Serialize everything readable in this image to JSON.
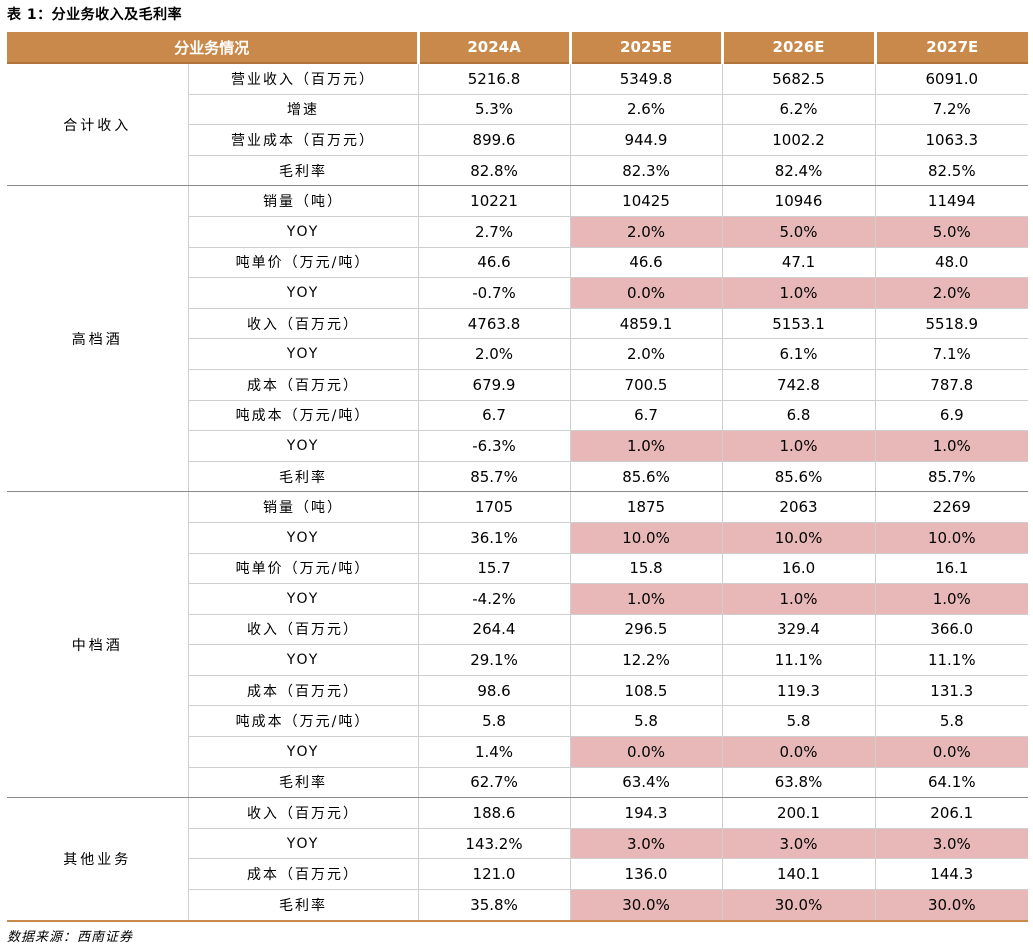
{
  "caption": "表 1：分业务收入及毛利率",
  "header": [
    "分业务情况",
    "2024A",
    "2025E",
    "2026E",
    "2027E"
  ],
  "groups": [
    {
      "name": "合计收入",
      "rows": [
        {
          "label": "营业收入（百万元）",
          "values": [
            "5216.8",
            "5349.8",
            "5682.5",
            "6091.0"
          ],
          "highlight": false
        },
        {
          "label": "增速",
          "values": [
            "5.3%",
            "2.6%",
            "6.2%",
            "7.2%"
          ],
          "highlight": false
        },
        {
          "label": "营业成本（百万元）",
          "values": [
            "899.6",
            "944.9",
            "1002.2",
            "1063.3"
          ],
          "highlight": false
        },
        {
          "label": "毛利率",
          "values": [
            "82.8%",
            "82.3%",
            "82.4%",
            "82.5%"
          ],
          "highlight": false
        }
      ]
    },
    {
      "name": "高档酒",
      "rows": [
        {
          "label": "销量（吨）",
          "values": [
            "10221",
            "10425",
            "10946",
            "11494"
          ],
          "highlight": false
        },
        {
          "label": "YOY",
          "values": [
            "2.7%",
            "2.0%",
            "5.0%",
            "5.0%"
          ],
          "highlight": true
        },
        {
          "label": "吨单价（万元/吨）",
          "values": [
            "46.6",
            "46.6",
            "47.1",
            "48.0"
          ],
          "highlight": false
        },
        {
          "label": "YOY",
          "values": [
            "-0.7%",
            "0.0%",
            "1.0%",
            "2.0%"
          ],
          "highlight": true
        },
        {
          "label": "收入（百万元）",
          "values": [
            "4763.8",
            "4859.1",
            "5153.1",
            "5518.9"
          ],
          "highlight": false
        },
        {
          "label": "YOY",
          "values": [
            "2.0%",
            "2.0%",
            "6.1%",
            "7.1%"
          ],
          "highlight": false
        },
        {
          "label": "成本（百万元）",
          "values": [
            "679.9",
            "700.5",
            "742.8",
            "787.8"
          ],
          "highlight": false
        },
        {
          "label": "吨成本（万元/吨）",
          "values": [
            "6.7",
            "6.7",
            "6.8",
            "6.9"
          ],
          "highlight": false
        },
        {
          "label": "YOY",
          "values": [
            "-6.3%",
            "1.0%",
            "1.0%",
            "1.0%"
          ],
          "highlight": true
        },
        {
          "label": "毛利率",
          "values": [
            "85.7%",
            "85.6%",
            "85.6%",
            "85.7%"
          ],
          "highlight": false
        }
      ]
    },
    {
      "name": "中档酒",
      "rows": [
        {
          "label": "销量（吨）",
          "values": [
            "1705",
            "1875",
            "2063",
            "2269"
          ],
          "highlight": false
        },
        {
          "label": "YOY",
          "values": [
            "36.1%",
            "10.0%",
            "10.0%",
            "10.0%"
          ],
          "highlight": true
        },
        {
          "label": "吨单价（万元/吨）",
          "values": [
            "15.7",
            "15.8",
            "16.0",
            "16.1"
          ],
          "highlight": false
        },
        {
          "label": "YOY",
          "values": [
            "-4.2%",
            "1.0%",
            "1.0%",
            "1.0%"
          ],
          "highlight": true
        },
        {
          "label": "收入（百万元）",
          "values": [
            "264.4",
            "296.5",
            "329.4",
            "366.0"
          ],
          "highlight": false
        },
        {
          "label": "YOY",
          "values": [
            "29.1%",
            "12.2%",
            "11.1%",
            "11.1%"
          ],
          "highlight": false
        },
        {
          "label": "成本（百万元）",
          "values": [
            "98.6",
            "108.5",
            "119.3",
            "131.3"
          ],
          "highlight": false
        },
        {
          "label": "吨成本（万元/吨）",
          "values": [
            "5.8",
            "5.8",
            "5.8",
            "5.8"
          ],
          "highlight": false
        },
        {
          "label": "YOY",
          "values": [
            "1.4%",
            "0.0%",
            "0.0%",
            "0.0%"
          ],
          "highlight": true
        },
        {
          "label": "毛利率",
          "values": [
            "62.7%",
            "63.4%",
            "63.8%",
            "64.1%"
          ],
          "highlight": false
        }
      ]
    },
    {
      "name": "其他业务",
      "rows": [
        {
          "label": "收入（百万元）",
          "values": [
            "188.6",
            "194.3",
            "200.1",
            "206.1"
          ],
          "highlight": false
        },
        {
          "label": "YOY",
          "values": [
            "143.2%",
            "3.0%",
            "3.0%",
            "3.0%"
          ],
          "highlight": true
        },
        {
          "label": "成本（百万元）",
          "values": [
            "121.0",
            "136.0",
            "140.1",
            "144.3"
          ],
          "highlight": false
        },
        {
          "label": "毛利率",
          "values": [
            "35.8%",
            "30.0%",
            "30.0%",
            "30.0%"
          ],
          "highlight": true
        }
      ]
    }
  ],
  "highlight_color": "#e8b8b8",
  "header_color": "#c8894b",
  "source": "数据来源：西南证券"
}
